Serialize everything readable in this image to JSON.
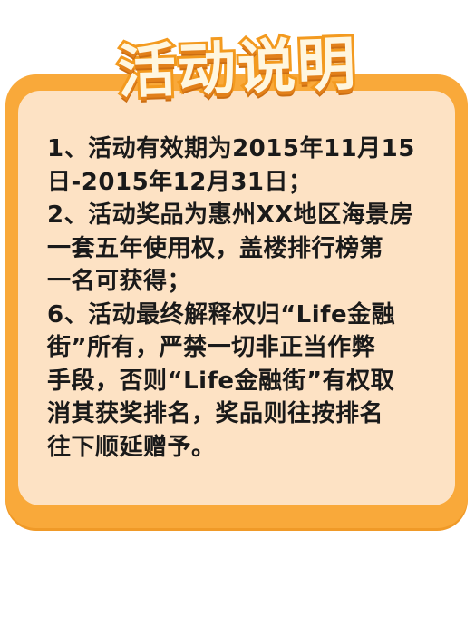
{
  "title": "活动说明",
  "rules": [
    "1、活动有效期为2015年11月15",
    "日-2015年12月31日；",
    "2、活动奖品为惠州XX地区海景房",
    "一套五年使用权，盖楼排行榜第",
    "一名可获得；",
    "6、活动最终解释权归“Life金融",
    "街”所有，严禁一切非正当作弊",
    "手段，否则“Life金融街”有权取",
    "消其获奖排名，奖品则往按排名",
    "往下顺延赠予。"
  ],
  "colors": {
    "card_border": "#f9a93a",
    "card_fill": "#fde2c4",
    "title_fill": "#fff6df",
    "title_stroke": "#f39a1f",
    "text": "#1a1a1a"
  }
}
